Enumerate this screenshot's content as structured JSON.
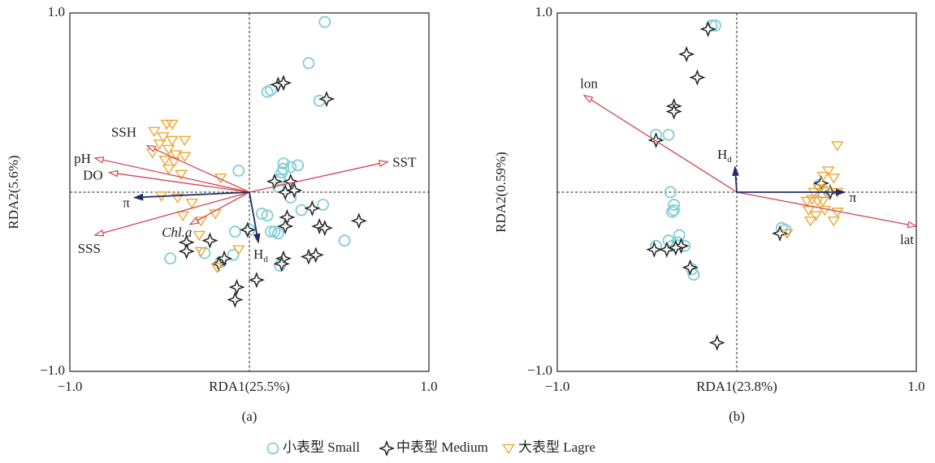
{
  "chart_data": [
    {
      "type": "scatter",
      "xlabel": "RDA1(25.5%)",
      "ylabel": "RDA2(5.6%)",
      "caption": "(a)",
      "xlim": [
        -1,
        1
      ],
      "ylim": [
        -1,
        1
      ],
      "xticks": [
        {
          "value": -1,
          "label": "−1.0"
        },
        {
          "value": 1,
          "label": "1.0"
        }
      ],
      "yticks": [
        {
          "value": -1,
          "label": "−1.0"
        },
        {
          "value": 1,
          "label": "1.0"
        }
      ],
      "zero_lines": true,
      "legend": "bottom",
      "series": [
        {
          "name": "小表型 Small",
          "color": "#7fcdd8",
          "marker": "circle",
          "x": [
            0.42,
            0.33,
            0.1,
            0.12,
            0.39,
            -0.06,
            0.19,
            0.23,
            0.27,
            0.19,
            0.18,
            0.17,
            0.16,
            0.23,
            0.29,
            0.41,
            0.07,
            0.1,
            0.14,
            0.16,
            0.12,
            -0.08,
            0.0,
            0.53,
            -0.44,
            -0.25,
            -0.16,
            -0.09,
            0.17
          ],
          "values": [
            0.95,
            0.72,
            0.56,
            0.57,
            0.51,
            0.12,
            0.16,
            0.14,
            0.15,
            0.13,
            0.11,
            0.07,
            0.03,
            -0.03,
            -0.1,
            -0.07,
            -0.12,
            -0.13,
            -0.22,
            -0.23,
            -0.22,
            -0.22,
            -0.21,
            -0.27,
            -0.37,
            -0.34,
            -0.39,
            -0.35,
            -0.41
          ]
        },
        {
          "name": "中表型 Medium",
          "color": "#222222",
          "marker": "star",
          "x": [
            0.16,
            0.19,
            0.43,
            0.14,
            0.23,
            0.2,
            0.25,
            0.35,
            0.21,
            0.2,
            0.39,
            0.42,
            0.61,
            -0.01,
            -0.35,
            -0.22,
            -0.35,
            -0.14,
            -0.17,
            0.19,
            0.18,
            0.33,
            0.37,
            0.04,
            -0.07,
            -0.08
          ],
          "values": [
            0.6,
            0.61,
            0.52,
            0.06,
            0.06,
            0.0,
            0.01,
            -0.09,
            -0.14,
            -0.19,
            -0.19,
            -0.2,
            -0.16,
            -0.21,
            -0.28,
            -0.27,
            -0.33,
            -0.37,
            -0.4,
            -0.37,
            -0.4,
            -0.36,
            -0.35,
            -0.49,
            -0.53,
            -0.6
          ]
        },
        {
          "name": "大表型 Lagre",
          "color": "#f0a630",
          "marker": "triangle",
          "x": [
            -0.46,
            -0.43,
            -0.53,
            -0.48,
            -0.43,
            -0.36,
            -0.5,
            -0.45,
            -0.54,
            -0.41,
            -0.36,
            -0.47,
            -0.42,
            -0.45,
            -0.38,
            -0.49,
            -0.16,
            -0.4,
            -0.32,
            -0.19,
            -0.37,
            -0.27,
            -0.27,
            -0.18,
            -0.06,
            -0.28
          ],
          "values": [
            0.38,
            0.38,
            0.34,
            0.31,
            0.29,
            0.29,
            0.27,
            0.24,
            0.22,
            0.21,
            0.2,
            0.18,
            0.17,
            0.13,
            0.1,
            -0.02,
            0.08,
            -0.03,
            -0.06,
            -0.12,
            -0.13,
            -0.16,
            -0.33,
            -0.42,
            -0.32,
            -0.24
          ]
        }
      ],
      "arrows": [
        {
          "label": "SST",
          "x": 0.77,
          "y": 0.17,
          "color": "#d2464f"
        },
        {
          "label": "SSH",
          "x": -0.57,
          "y": 0.26,
          "color": "#d2464f"
        },
        {
          "label": "pH",
          "x": -0.86,
          "y": 0.19,
          "color": "#d2464f"
        },
        {
          "label": "DO",
          "x": -0.78,
          "y": 0.11,
          "color": "#d2464f"
        },
        {
          "label": "SSS",
          "x": -0.86,
          "y": -0.24,
          "color": "#d2464f"
        },
        {
          "label": "Chl.a",
          "x": -0.33,
          "y": -0.18,
          "color": "#d2464f",
          "italic": true
        },
        {
          "label": "π",
          "x": -0.64,
          "y": -0.03,
          "color": "#262b66",
          "filled": true
        },
        {
          "label": "H",
          "subscript": "d",
          "x": 0.05,
          "y": -0.28,
          "color": "#262b66",
          "filled": true
        }
      ]
    },
    {
      "type": "scatter",
      "xlabel": "RDA1(23.8%)",
      "ylabel": "RDA2(0.59%)",
      "caption": "(b)",
      "xlim": [
        -1,
        1
      ],
      "ylim": [
        -1,
        1
      ],
      "xticks": [
        {
          "value": -1,
          "label": "−1.0"
        },
        {
          "value": 1,
          "label": "1.0"
        }
      ],
      "yticks": [
        {
          "value": -1,
          "label": "−1.0"
        },
        {
          "value": 1,
          "label": "1.0"
        }
      ],
      "zero_lines": true,
      "series": [
        {
          "color": "#7fcdd8",
          "marker": "circle",
          "x": [
            -0.14,
            -0.12,
            -0.45,
            -0.38,
            -0.37,
            -0.35,
            -0.35,
            -0.36,
            -0.32,
            -0.33,
            -0.38,
            -0.45,
            -0.36,
            -0.29,
            -0.25,
            -0.24,
            0.25,
            0.27,
            0.46,
            0.48
          ],
          "values": [
            0.93,
            0.93,
            0.32,
            0.32,
            0.0,
            -0.07,
            -0.1,
            -0.11,
            -0.24,
            -0.28,
            -0.27,
            -0.3,
            -0.3,
            -0.3,
            -0.43,
            -0.46,
            -0.2,
            -0.21,
            0.04,
            0.0
          ]
        },
        {
          "color": "#222222",
          "marker": "star",
          "x": [
            -0.16,
            -0.28,
            -0.22,
            -0.35,
            -0.35,
            -0.45,
            -0.46,
            -0.39,
            -0.31,
            -0.34,
            -0.26,
            0.24,
            0.47,
            0.52,
            -0.11
          ],
          "values": [
            0.91,
            0.77,
            0.64,
            0.48,
            0.45,
            0.29,
            -0.32,
            -0.32,
            -0.3,
            -0.31,
            -0.42,
            -0.23,
            0.05,
            0.0,
            -0.84
          ]
        },
        {
          "color": "#f0a630",
          "marker": "triangle",
          "x": [
            0.56,
            0.51,
            0.48,
            0.54,
            0.46,
            0.43,
            0.49,
            0.56,
            0.39,
            0.42,
            0.45,
            0.48,
            0.4,
            0.49,
            0.56,
            0.41,
            0.54,
            0.44,
            0.28
          ],
          "values": [
            0.26,
            0.12,
            0.09,
            0.08,
            0.02,
            0.0,
            0.01,
            0.0,
            -0.05,
            -0.04,
            -0.05,
            -0.05,
            -0.1,
            -0.1,
            -0.11,
            -0.16,
            -0.16,
            -0.13,
            -0.23
          ]
        }
      ],
      "arrows": [
        {
          "label": "lon",
          "x": -0.85,
          "y": 0.54,
          "color": "#d2464f"
        },
        {
          "label": "lat",
          "x": 1.0,
          "y": -0.19,
          "color": "#d2464f"
        },
        {
          "label": "π",
          "x": 0.6,
          "y": 0.0,
          "color": "#262b66",
          "filled": true
        },
        {
          "label": "H",
          "subscript": "d",
          "x": -0.01,
          "y": 0.14,
          "color": "#262b66",
          "filled": true
        }
      ]
    }
  ]
}
